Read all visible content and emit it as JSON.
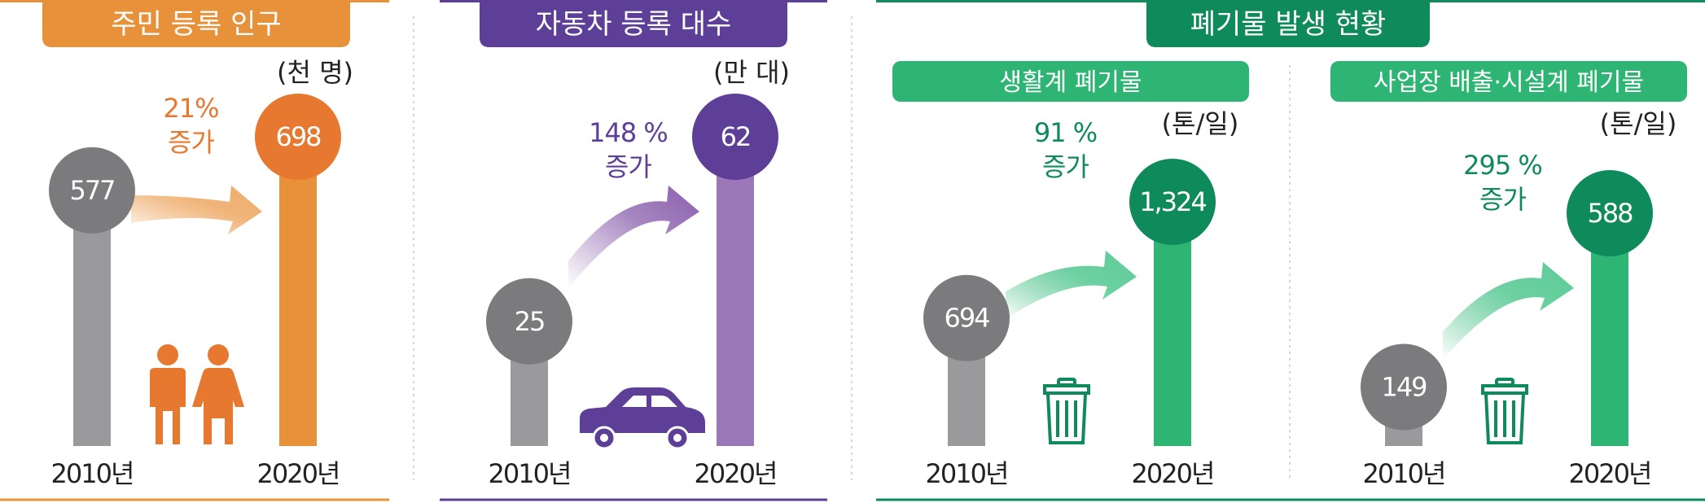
{
  "colors": {
    "gray": "#9a9a9c",
    "gray_circle": "#7b7b7e",
    "orange": "#e8913b",
    "orange_circle": "#e6782f",
    "orange_title": "#e8913b",
    "purple": "#9b77b8",
    "purple_circle": "#5e3f97",
    "purple_title": "#5e3f97",
    "green": "#2fb573",
    "green_circle": "#0f8a5a",
    "green_title": "#0f8a5a",
    "green_sub": "#2fb573",
    "text": "#222222"
  },
  "waste_group_title": "폐기물 발생 현황",
  "chart_data": [
    {
      "type": "bar",
      "title": "주민 등록 인구",
      "unit": "(천 명)",
      "categories": [
        "2010년",
        "2020년"
      ],
      "values": [
        577,
        698
      ],
      "value_labels": [
        "577",
        "698"
      ],
      "increase_label": [
        "21%",
        "증가"
      ],
      "ylim": [
        0,
        698
      ],
      "icon": "people-icon"
    },
    {
      "type": "bar",
      "title": "자동차 등록 대수",
      "unit": "(만 대)",
      "categories": [
        "2010년",
        "2020년"
      ],
      "values": [
        25,
        62
      ],
      "value_labels": [
        "25",
        "62"
      ],
      "increase_label": [
        "148 %",
        "증가"
      ],
      "ylim": [
        0,
        62
      ],
      "icon": "car-icon"
    },
    {
      "type": "bar",
      "group": "폐기물 발생 현황",
      "title": "생활계 폐기물",
      "unit": "(톤/일)",
      "categories": [
        "2010년",
        "2020년"
      ],
      "values": [
        694,
        1324
      ],
      "value_labels": [
        "694",
        "1,324"
      ],
      "increase_label": [
        "91 %",
        "증가"
      ],
      "ylim": [
        0,
        1324
      ],
      "icon": "trash-can-icon"
    },
    {
      "type": "bar",
      "group": "폐기물 발생 현황",
      "title": "사업장 배출·시설계 폐기물",
      "unit": "(톤/일)",
      "categories": [
        "2010년",
        "2020년"
      ],
      "values": [
        149,
        588
      ],
      "value_labels": [
        "149",
        "588"
      ],
      "increase_label": [
        "295 %",
        "증가"
      ],
      "ylim": [
        0,
        588
      ],
      "icon": "trash-can-icon"
    }
  ]
}
